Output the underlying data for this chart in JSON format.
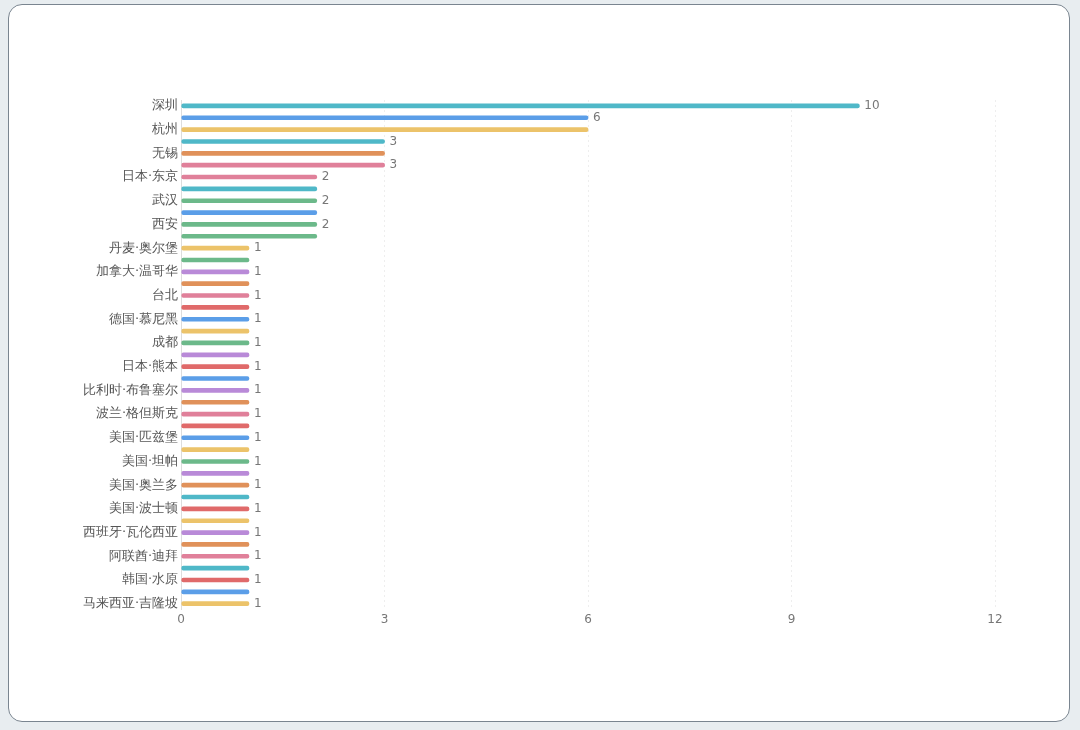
{
  "chart_data": {
    "type": "bar",
    "orientation": "horizontal",
    "categories": [
      "深圳",
      null,
      "杭州",
      null,
      "无锡",
      null,
      "日本·东京",
      null,
      "武汉",
      null,
      "西安",
      null,
      "丹麦·奥尔堡",
      null,
      "加拿大·温哥华",
      null,
      "台北",
      null,
      "德国·慕尼黑",
      null,
      "成都",
      null,
      "日本·熊本",
      null,
      "比利时·布鲁塞尔",
      null,
      "波兰·格但斯克",
      null,
      "美国·匹兹堡",
      null,
      "美国·坦帕",
      null,
      "美国·奥兰多",
      null,
      "美国·波士顿",
      null,
      "西班牙·瓦伦西亚",
      null,
      "阿联酋·迪拜",
      null,
      "韩国·水原",
      null,
      "马来西亚·吉隆坡"
    ],
    "values": [
      10,
      6,
      6,
      3,
      3,
      3,
      2,
      2,
      2,
      2,
      2,
      2,
      1,
      1,
      1,
      1,
      1,
      1,
      1,
      1,
      1,
      1,
      1,
      1,
      1,
      1,
      1,
      1,
      1,
      1,
      1,
      1,
      1,
      1,
      1,
      1,
      1,
      1,
      1,
      1,
      1,
      1,
      1
    ],
    "value_labels": [
      "10",
      "6",
      null,
      "3",
      null,
      "3",
      "2",
      null,
      "2",
      null,
      "2",
      null,
      "1",
      null,
      "1",
      null,
      "1",
      null,
      "1",
      null,
      "1",
      null,
      "1",
      null,
      "1",
      null,
      "1",
      null,
      "1",
      null,
      "1",
      null,
      "1",
      null,
      "1",
      null,
      "1",
      null,
      "1",
      null,
      "1",
      null,
      "1"
    ],
    "colors": [
      "#4fb8c8",
      "#5b9ee8",
      "#ecc36a",
      "#4fb8c8",
      "#e0915a",
      "#e0809a",
      "#e0809a",
      "#4fb8c8",
      "#6cb98a",
      "#5b9ee8",
      "#6cb98a",
      "#6cb98a",
      "#ecc36a",
      "#6cb98a",
      "#b98ad8",
      "#e0915a",
      "#e0809a",
      "#e06a6a",
      "#5b9ee8",
      "#ecc36a",
      "#6cb98a",
      "#b98ad8",
      "#e06a6a",
      "#5b9ee8",
      "#b98ad8",
      "#e0915a",
      "#e0809a",
      "#e06a6a",
      "#5b9ee8",
      "#ecc36a",
      "#6cb98a",
      "#b98ad8",
      "#e0915a",
      "#4fb8c8",
      "#e06a6a",
      "#ecc36a",
      "#b98ad8",
      "#e0915a",
      "#e0809a",
      "#4fb8c8",
      "#e06a6a",
      "#5b9ee8",
      "#ecc36a"
    ],
    "xlim": [
      0,
      12
    ],
    "xticks": [
      0,
      3,
      6,
      9,
      12
    ],
    "grid": "x"
  }
}
